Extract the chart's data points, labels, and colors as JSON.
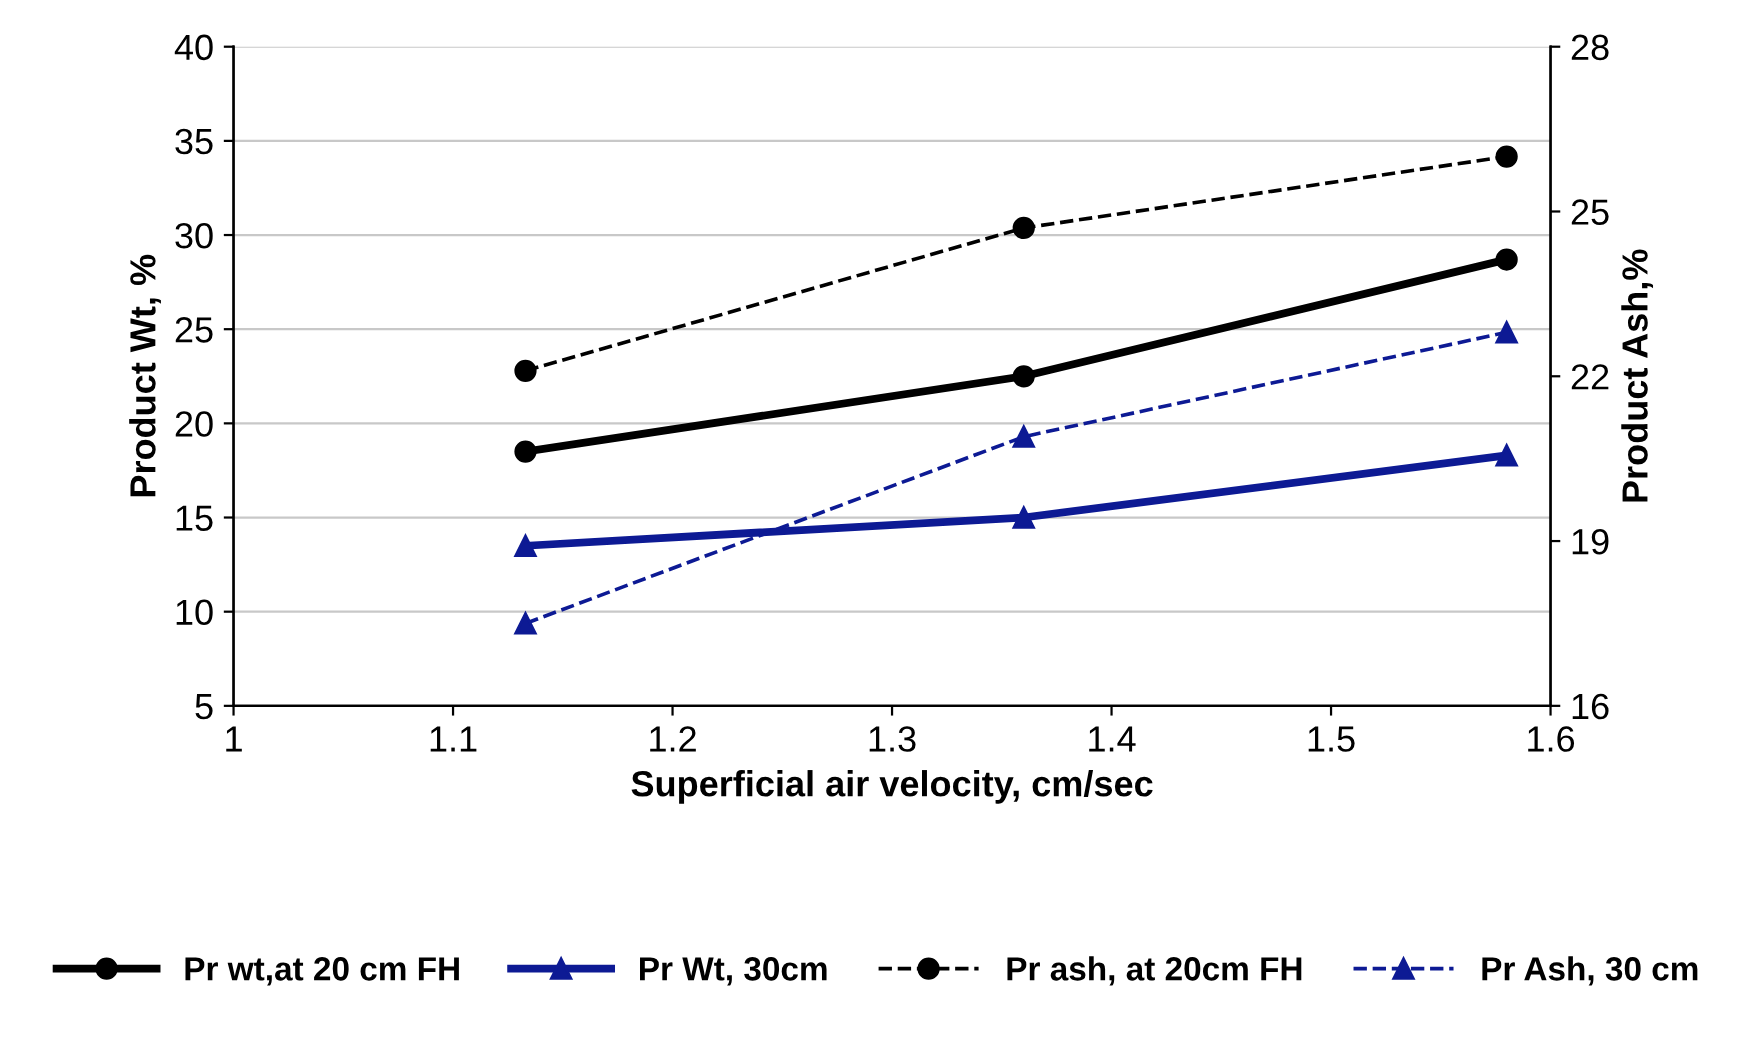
{
  "chart_data": {
    "type": "line",
    "xlabel": "Superficial air velocity, cm/sec",
    "ylabel": "Product Wt, %",
    "y2label": "Product Ash,%",
    "x": [
      1.133,
      1.36,
      1.58
    ],
    "series": [
      {
        "name": "Pr wt,at 20 cm FH",
        "color": "#000000",
        "values": [
          18.5,
          22.5,
          28.7
        ],
        "marker": "circle",
        "line_style": "solid"
      },
      {
        "name": "Pr Wt, 30cm",
        "color": "#0d1a94",
        "values": [
          13.5,
          15.0,
          18.3
        ],
        "marker": "triangle",
        "line_style": "solid"
      },
      {
        "name": "Pr ash, at 20cm FH",
        "color": "#000000",
        "values": [
          22.1,
          24.7,
          26.0
        ],
        "marker": "circle",
        "line_style": "dashed",
        "axis": "y2"
      },
      {
        "name": "Pr Ash, 30 cm",
        "color": "#0d1a94",
        "values": [
          17.5,
          20.9,
          22.8
        ],
        "marker": "triangle",
        "line_style": "dashed",
        "axis": "y2"
      }
    ],
    "xlim": [
      1,
      1.6
    ],
    "xticks": [
      1,
      1.1,
      1.2,
      1.3,
      1.4,
      1.5,
      1.6
    ],
    "ylim": [
      5,
      40
    ],
    "yticks": [
      5,
      10,
      15,
      20,
      25,
      30,
      35,
      40
    ],
    "y2lim": [
      16,
      28
    ],
    "y2ticks": [
      16,
      19,
      22,
      25,
      28
    ],
    "grid": "y",
    "legend": "bottom"
  }
}
